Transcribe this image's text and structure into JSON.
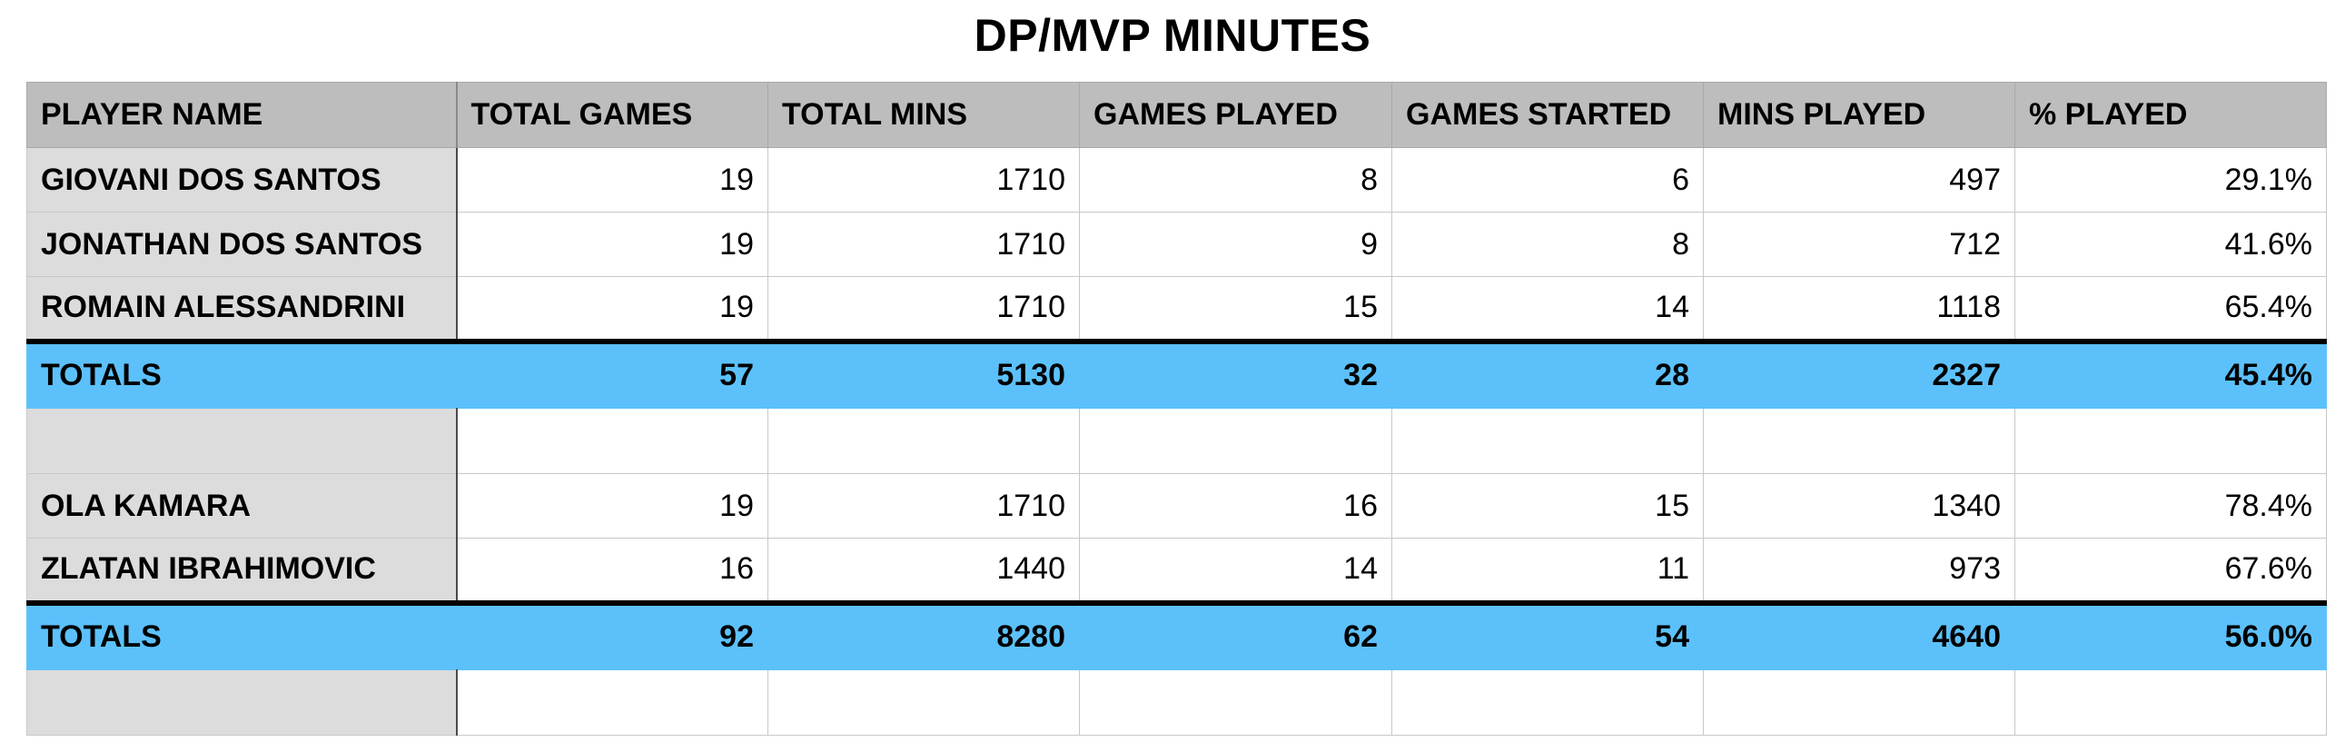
{
  "title": "DP/MVP MINUTES",
  "columns": [
    "PLAYER NAME",
    "TOTAL GAMES",
    "TOTAL MINS",
    "GAMES PLAYED",
    "GAMES STARTED",
    "MINS PLAYED",
    "% PLAYED"
  ],
  "rows": [
    [
      "GIOVANI DOS SANTOS",
      "19",
      "1710",
      "8",
      "6",
      "497",
      "29.1%"
    ],
    [
      "JONATHAN DOS SANTOS",
      "19",
      "1710",
      "9",
      "8",
      "712",
      "41.6%"
    ],
    [
      "ROMAIN ALESSANDRINI",
      "19",
      "1710",
      "15",
      "14",
      "1118",
      "65.4%"
    ],
    [
      "TOTALS",
      "57",
      "5130",
      "32",
      "28",
      "2327",
      "45.4%"
    ],
    [
      "",
      "",
      "",
      "",
      "",
      "",
      ""
    ],
    [
      "OLA KAMARA",
      "19",
      "1710",
      "16",
      "15",
      "1340",
      "78.4%"
    ],
    [
      "ZLATAN IBRAHIMOVIC",
      "16",
      "1440",
      "14",
      "11",
      "973",
      "67.6%"
    ],
    [
      "TOTALS",
      "92",
      "8280",
      "62",
      "54",
      "4640",
      "56.0%"
    ],
    [
      "",
      "",
      "",
      "",
      "",
      "",
      ""
    ]
  ],
  "colors": {
    "header_bg": "#bdbdbd",
    "name_col_bg": "#dcdcdc",
    "totals_bg": "#5cc1fb"
  }
}
